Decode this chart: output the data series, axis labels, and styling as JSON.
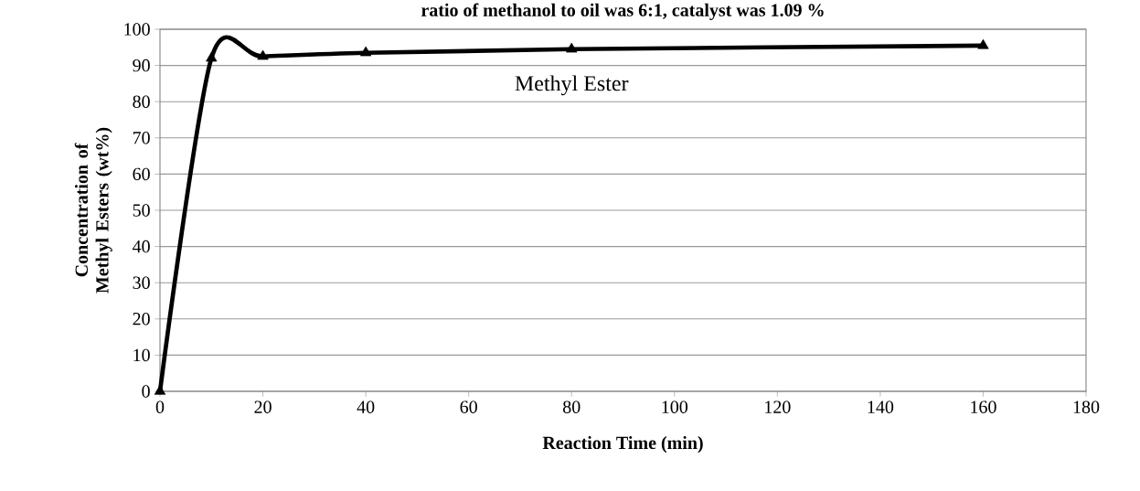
{
  "chart_data": {
    "type": "line",
    "title": "ratio of methanol to oil was 6:1, catalyst was 1.09 %",
    "xlabel": "Reaction Time (min)",
    "ylabel": "Concentration of Methyl Esters (wt%)",
    "x": [
      0,
      10,
      20,
      40,
      80,
      160
    ],
    "series": [
      {
        "name": "Methyl Ester",
        "color": "#000000",
        "values": [
          0,
          92,
          92.5,
          93.5,
          94.5,
          95.5
        ]
      }
    ],
    "xlim": [
      0,
      180
    ],
    "ylim": [
      0,
      100
    ],
    "xticks": [
      0,
      20,
      40,
      60,
      80,
      100,
      120,
      140,
      160,
      180
    ],
    "yticks": [
      0,
      10,
      20,
      30,
      40,
      50,
      60,
      70,
      80,
      90,
      100
    ],
    "grid": "y",
    "marker": "triangle",
    "line_style": "solid"
  }
}
